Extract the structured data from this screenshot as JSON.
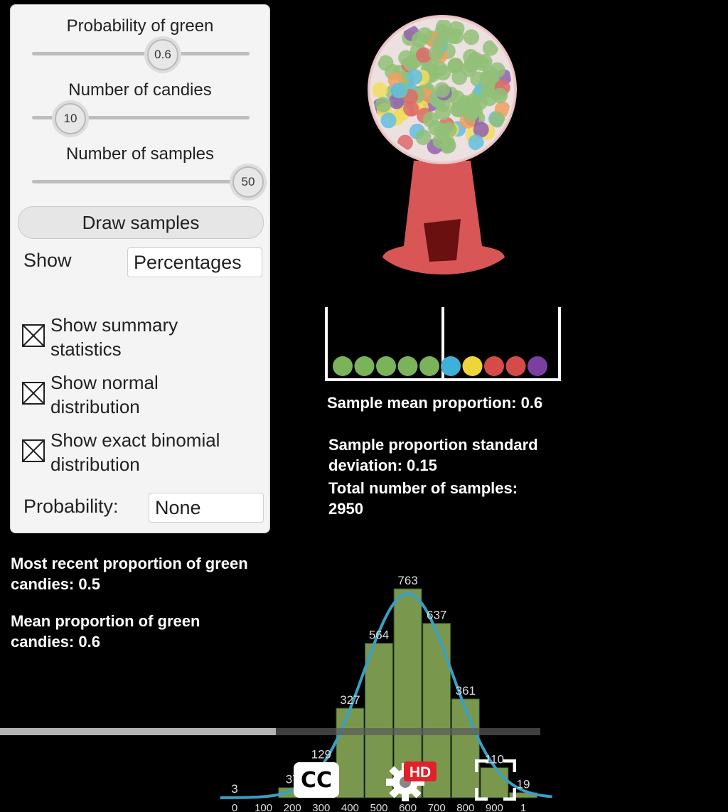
{
  "controls": {
    "prob_green": {
      "label": "Probability of green",
      "value": "0.6"
    },
    "num_candies": {
      "label": "Number of candies",
      "value": "10"
    },
    "num_samples": {
      "label": "Number of samples",
      "value": "50"
    },
    "draw_button": "Draw samples",
    "show_label": "Show",
    "show_value": "Percentages",
    "checkboxes": [
      {
        "line1": "Show summary",
        "line2": "statistics",
        "checked": true
      },
      {
        "line1": "Show normal",
        "line2": "distribution",
        "checked": true
      },
      {
        "line1": "Show exact binomial",
        "line2": "distribution",
        "checked": true
      }
    ],
    "probability_label": "Probability:",
    "probability_value": "None"
  },
  "stats": {
    "sample_mean": "Sample mean proportion: 0.6",
    "sample_sd_line1": "Sample proportion standard",
    "sample_sd_line2": "deviation: 0.15",
    "total_line1": "Total number of samples:",
    "total_line2": "2950",
    "recent_line1": "Most recent proportion of green",
    "recent_line2": "candies: 0.5",
    "mean_line1": "Mean proportion of green",
    "mean_line2": "candies: 0.6"
  },
  "tray": {
    "candies": [
      "#7ab35a",
      "#7ab35a",
      "#7ab35a",
      "#7ab35a",
      "#7ab35a",
      "#3fb0d8",
      "#f0d53a",
      "#d64a4a",
      "#d64a4a",
      "#7b3fa0"
    ]
  },
  "chart_data": {
    "type": "bar",
    "categories": [
      "0",
      "100",
      "200",
      "300",
      "400",
      "500",
      "600",
      "700",
      "800",
      "900",
      "1"
    ],
    "values": [
      3,
      null,
      37,
      129,
      327,
      564,
      763,
      637,
      361,
      110,
      19
    ],
    "value_labels": [
      "3",
      "",
      "37",
      "129",
      "327",
      "564",
      "763",
      "637",
      "361",
      "110",
      "19"
    ],
    "tick_labels": [
      "0",
      "100",
      "200",
      "300",
      "400",
      "500",
      "600",
      "700",
      "800",
      "900",
      "1"
    ],
    "overlay": "normal curve",
    "bar_color": "#8fb35b",
    "curve_color": "#3a9fc4"
  },
  "video_controls": {
    "cc_label": "CC",
    "hd_label": "HD",
    "progress": 0.5
  }
}
